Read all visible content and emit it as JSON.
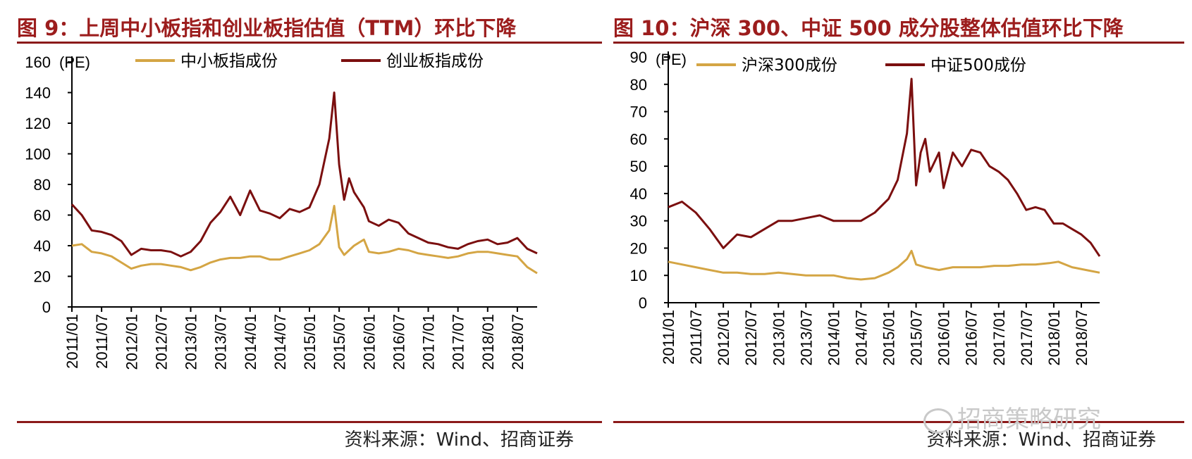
{
  "left": {
    "title": "图 9：上周中小板指和创业板指估值（TTM）环比下降",
    "source": "资料来源：Wind、招商证券",
    "chart_data": {
      "type": "line",
      "ylabel": "(PE)",
      "ylim": [
        0,
        160
      ],
      "yticks": [
        0,
        20,
        40,
        60,
        80,
        100,
        120,
        140,
        160
      ],
      "ytick_labels": [
        "0",
        "20",
        "40",
        "60",
        "80",
        "100",
        "120",
        "140",
        "160"
      ],
      "xtick_labels": [
        "2011/01",
        "2011/07",
        "2012/01",
        "2012/07",
        "2013/01",
        "2013/07",
        "2014/01",
        "2014/07",
        "2015/01",
        "2015/07",
        "2016/01",
        "2016/07",
        "2017/01",
        "2017/07",
        "2018/01",
        "2018/07"
      ],
      "legend": "top",
      "series": [
        {
          "name": "中小板指成份",
          "color": "#d4a544",
          "x": [
            "2011/01",
            "2011/03",
            "2011/05",
            "2011/07",
            "2011/09",
            "2011/11",
            "2012/01",
            "2012/03",
            "2012/05",
            "2012/07",
            "2012/09",
            "2012/11",
            "2013/01",
            "2013/03",
            "2013/05",
            "2013/07",
            "2013/09",
            "2013/11",
            "2014/01",
            "2014/03",
            "2014/05",
            "2014/07",
            "2014/09",
            "2014/11",
            "2015/01",
            "2015/03",
            "2015/05",
            "2015/06",
            "2015/07",
            "2015/08",
            "2015/10",
            "2015/12",
            "2016/01",
            "2016/03",
            "2016/05",
            "2016/07",
            "2016/09",
            "2016/11",
            "2017/01",
            "2017/03",
            "2017/05",
            "2017/07",
            "2017/09",
            "2017/11",
            "2018/01",
            "2018/03",
            "2018/05",
            "2018/07",
            "2018/09",
            "2018/11"
          ],
          "y": [
            40,
            41,
            36,
            35,
            33,
            29,
            25,
            27,
            28,
            28,
            27,
            26,
            24,
            26,
            29,
            31,
            32,
            32,
            33,
            33,
            31,
            31,
            33,
            35,
            37,
            41,
            50,
            66,
            39,
            34,
            40,
            44,
            36,
            35,
            36,
            38,
            37,
            35,
            34,
            33,
            32,
            33,
            35,
            36,
            36,
            35,
            34,
            33,
            26,
            22
          ]
        },
        {
          "name": "创业板指成份",
          "color": "#7b0f0f",
          "x": [
            "2011/01",
            "2011/03",
            "2011/05",
            "2011/07",
            "2011/09",
            "2011/11",
            "2012/01",
            "2012/03",
            "2012/05",
            "2012/07",
            "2012/09",
            "2012/11",
            "2013/01",
            "2013/03",
            "2013/05",
            "2013/07",
            "2013/09",
            "2013/11",
            "2014/01",
            "2014/03",
            "2014/05",
            "2014/07",
            "2014/09",
            "2014/11",
            "2015/01",
            "2015/03",
            "2015/05",
            "2015/06",
            "2015/07",
            "2015/08",
            "2015/09",
            "2015/10",
            "2015/12",
            "2016/01",
            "2016/03",
            "2016/05",
            "2016/07",
            "2016/09",
            "2016/11",
            "2017/01",
            "2017/03",
            "2017/05",
            "2017/07",
            "2017/09",
            "2017/11",
            "2018/01",
            "2018/03",
            "2018/05",
            "2018/07",
            "2018/09",
            "2018/11"
          ],
          "y": [
            67,
            60,
            50,
            49,
            47,
            43,
            34,
            38,
            37,
            37,
            36,
            33,
            36,
            43,
            55,
            62,
            72,
            60,
            76,
            63,
            61,
            58,
            64,
            62,
            65,
            80,
            110,
            140,
            93,
            70,
            84,
            75,
            65,
            56,
            53,
            57,
            55,
            48,
            45,
            42,
            41,
            39,
            38,
            41,
            43,
            44,
            41,
            42,
            45,
            38,
            35
          ]
        }
      ]
    }
  },
  "right": {
    "title": "图 10：沪深 300、中证 500 成分股整体估值环比下降",
    "source": "资料来源：Wind、招商证券",
    "watermark": "招商策略研究",
    "chart_data": {
      "type": "line",
      "ylabel": "(PE)",
      "ylim": [
        0,
        90
      ],
      "yticks": [
        0,
        10,
        20,
        30,
        40,
        50,
        60,
        70,
        80,
        90
      ],
      "ytick_labels": [
        "0",
        "10",
        "20",
        "30",
        "40",
        "50",
        "60",
        "70",
        "80",
        "90"
      ],
      "xtick_labels": [
        "2011/01",
        "2011/07",
        "2012/01",
        "2012/07",
        "2013/01",
        "2013/07",
        "2014/01",
        "2014/07",
        "2015/01",
        "2015/07",
        "2016/01",
        "2016/07",
        "2017/01",
        "2017/07",
        "2018/01",
        "2018/07"
      ],
      "legend": "top",
      "series": [
        {
          "name": "沪深300成份",
          "color": "#d4a544",
          "x": [
            "2011/01",
            "2011/04",
            "2011/07",
            "2011/10",
            "2012/01",
            "2012/04",
            "2012/07",
            "2012/10",
            "2013/01",
            "2013/04",
            "2013/07",
            "2013/10",
            "2014/01",
            "2014/04",
            "2014/07",
            "2014/10",
            "2015/01",
            "2015/03",
            "2015/05",
            "2015/06",
            "2015/07",
            "2015/09",
            "2015/12",
            "2016/03",
            "2016/06",
            "2016/09",
            "2016/12",
            "2017/03",
            "2017/06",
            "2017/09",
            "2017/12",
            "2018/02",
            "2018/05",
            "2018/08",
            "2018/11"
          ],
          "y": [
            15,
            14,
            13,
            12,
            11,
            11,
            10.5,
            10.5,
            11,
            10.5,
            10,
            10,
            10,
            9,
            8.5,
            9,
            11,
            13,
            16,
            19,
            14,
            13,
            12,
            13,
            13,
            13,
            13.5,
            13.5,
            14,
            14,
            14.5,
            15,
            13,
            12,
            11
          ]
        },
        {
          "name": "中证500成份",
          "color": "#7b0f0f",
          "x": [
            "2011/01",
            "2011/04",
            "2011/07",
            "2011/10",
            "2012/01",
            "2012/04",
            "2012/07",
            "2012/10",
            "2013/01",
            "2013/04",
            "2013/07",
            "2013/10",
            "2014/01",
            "2014/04",
            "2014/07",
            "2014/10",
            "2015/01",
            "2015/03",
            "2015/05",
            "2015/06",
            "2015/07",
            "2015/08",
            "2015/09",
            "2015/10",
            "2015/12",
            "2016/01",
            "2016/03",
            "2016/05",
            "2016/07",
            "2016/09",
            "2016/11",
            "2017/01",
            "2017/03",
            "2017/05",
            "2017/07",
            "2017/09",
            "2017/11",
            "2018/01",
            "2018/03",
            "2018/05",
            "2018/07",
            "2018/09",
            "2018/11"
          ],
          "y": [
            35,
            37,
            33,
            27,
            20,
            25,
            24,
            27,
            30,
            30,
            31,
            32,
            30,
            30,
            30,
            33,
            38,
            45,
            62,
            82,
            43,
            55,
            60,
            48,
            55,
            42,
            55,
            50,
            56,
            55,
            50,
            48,
            45,
            40,
            34,
            35,
            34,
            29,
            29,
            27,
            25,
            22,
            17
          ]
        }
      ]
    }
  }
}
